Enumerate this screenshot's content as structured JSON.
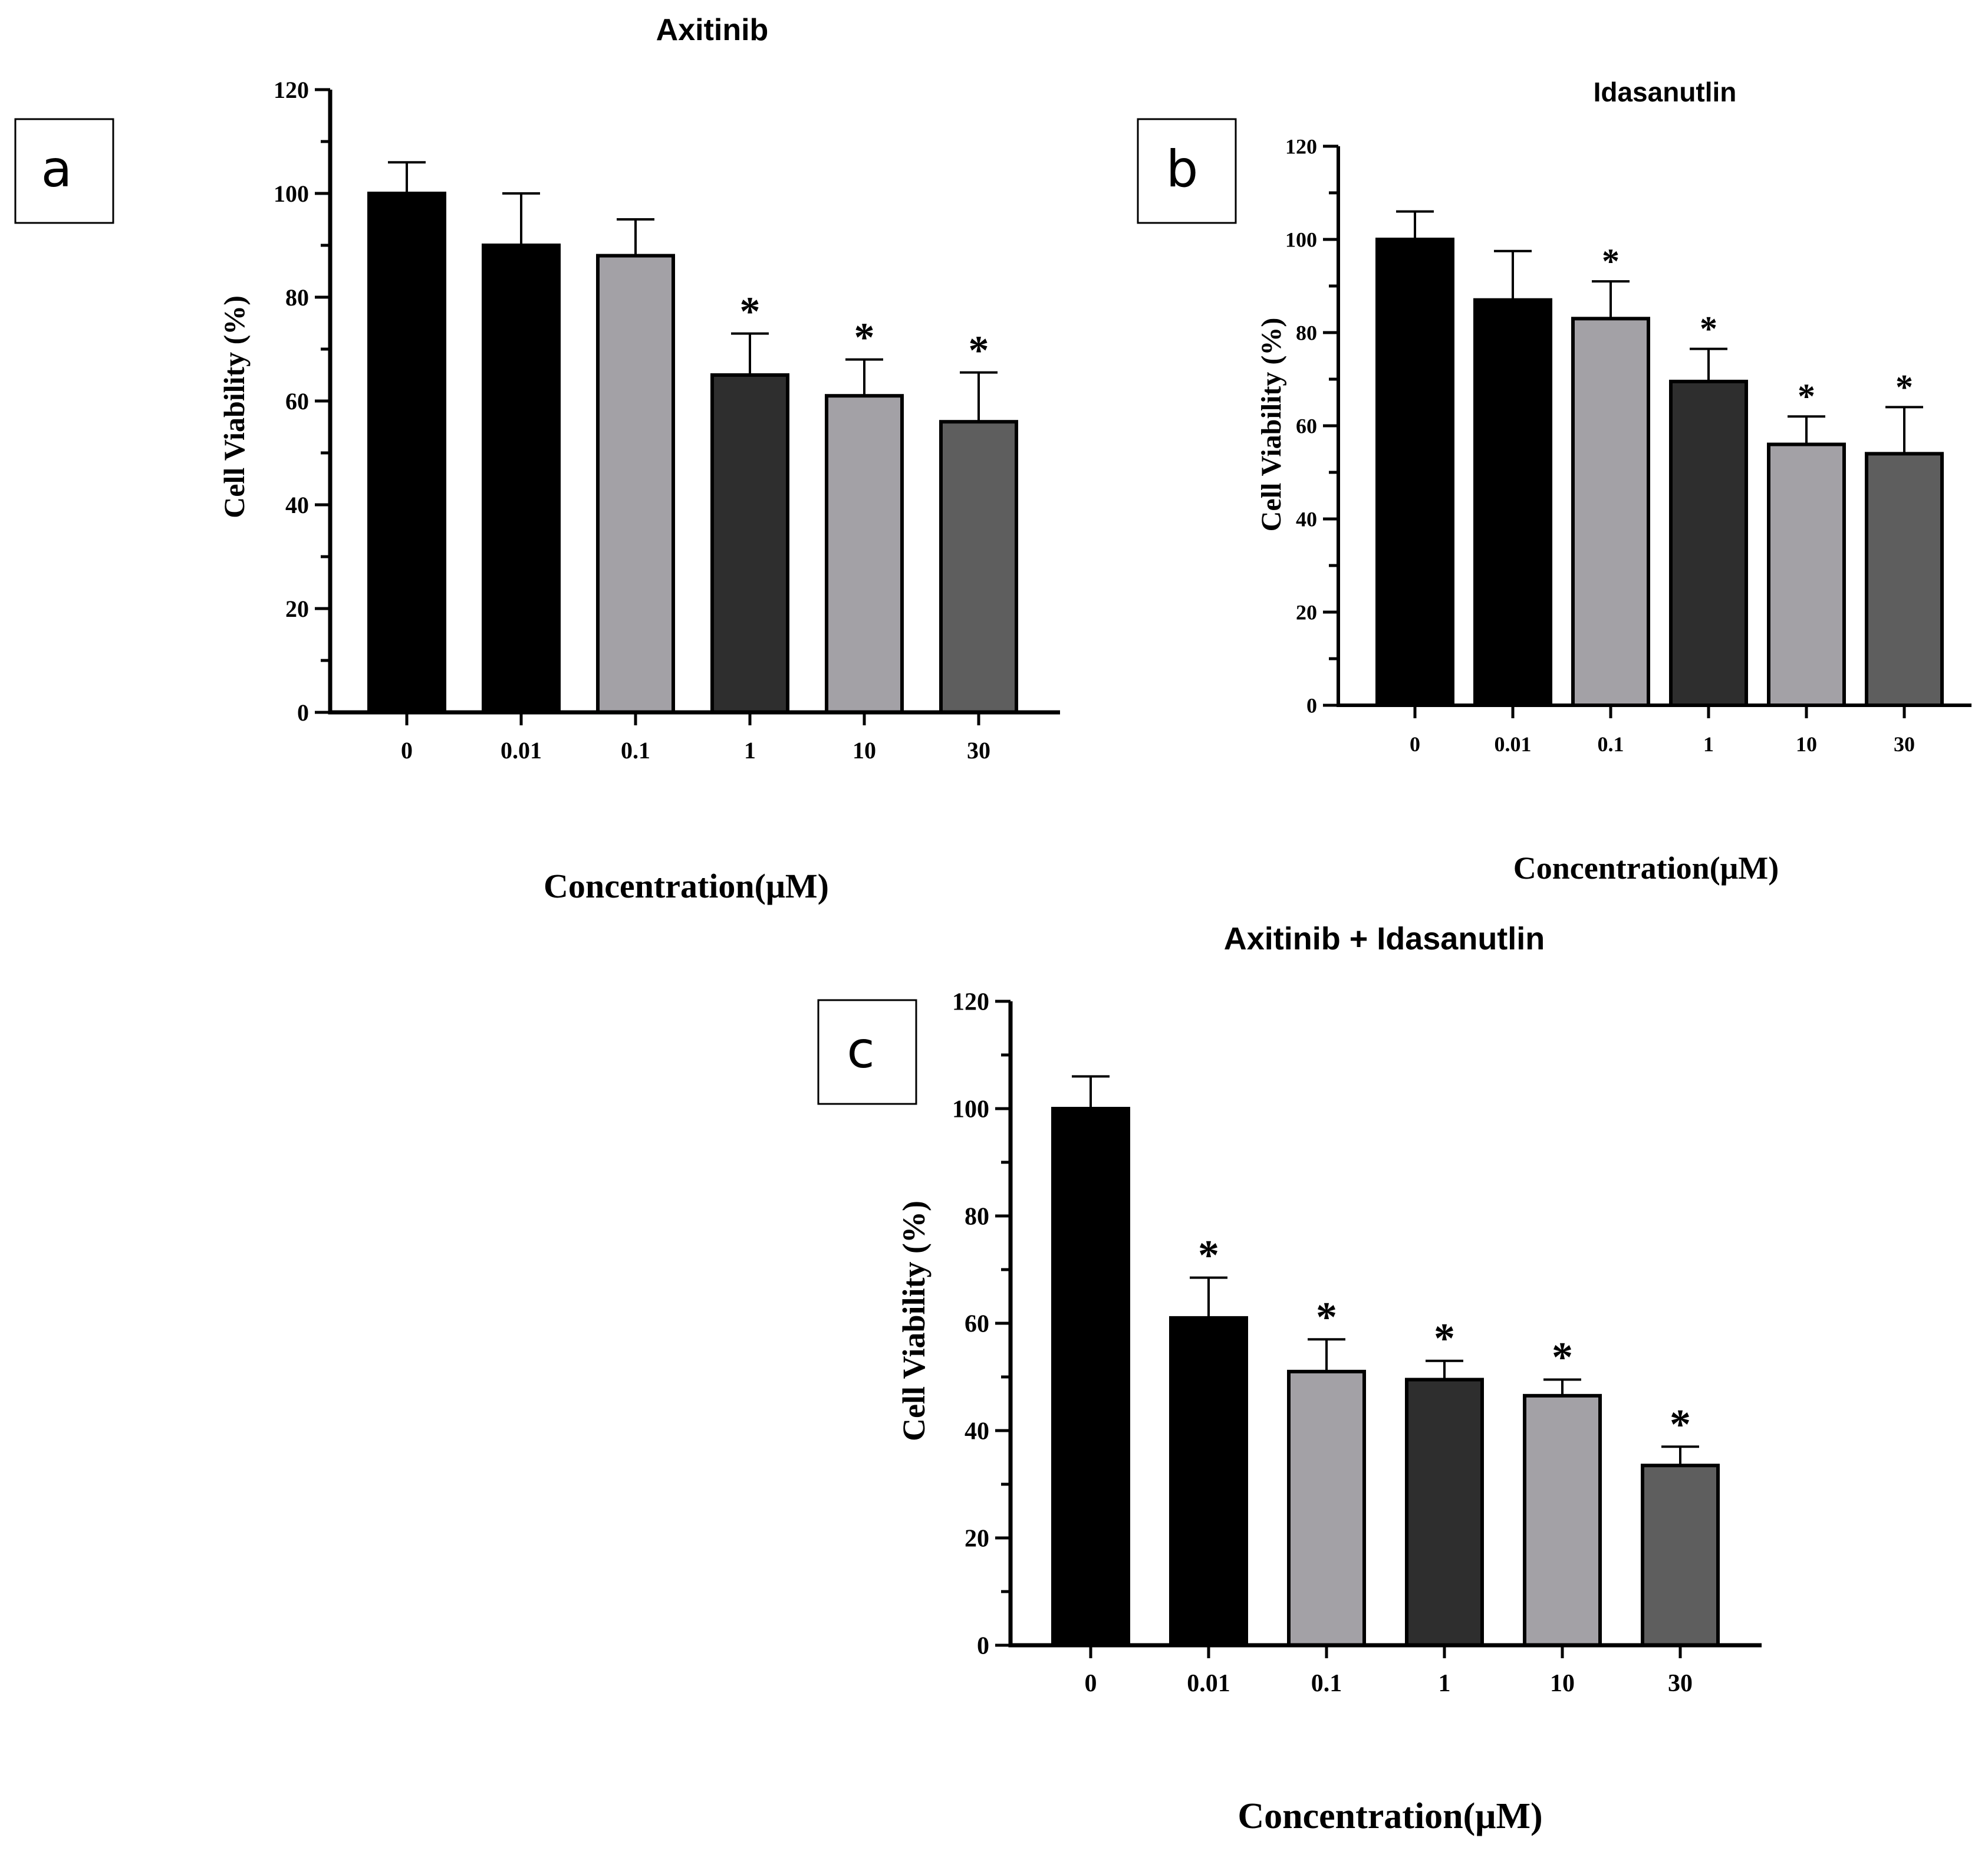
{
  "chart_data": [
    {
      "type": "bar",
      "panel_label": "a",
      "title": "Axitinib",
      "xlabel": "Concentration(μM)",
      "ylabel": "Cell Viability (%)",
      "ylim": [
        0,
        120
      ],
      "yticks": [
        "0",
        "20",
        "40",
        "60",
        "80",
        "100",
        "120"
      ],
      "categories": [
        "0",
        "0.01",
        "0.1",
        "1",
        "10",
        "30"
      ],
      "values": [
        100,
        90,
        88,
        65,
        61,
        56
      ],
      "errors": [
        6,
        10,
        7,
        8,
        7,
        9.5
      ],
      "significance": [
        "",
        "",
        "",
        "*",
        "*",
        "*"
      ],
      "bar_colors": [
        "#000000",
        "#000000",
        "#a3a1a6",
        "#2e2e2e",
        "#a3a1a6",
        "#5e5e5e"
      ],
      "grid": false,
      "legend": "none"
    },
    {
      "type": "bar",
      "panel_label": "b",
      "title": "Idasanutlin",
      "xlabel": "Concentration(μM)",
      "ylabel": "Cell Viability (%)",
      "ylim": [
        0,
        120
      ],
      "yticks": [
        "0",
        "20",
        "40",
        "60",
        "80",
        "100",
        "120"
      ],
      "categories": [
        "0",
        "0.01",
        "0.1",
        "1",
        "10",
        "30"
      ],
      "values": [
        100,
        87,
        83,
        69.5,
        56,
        54
      ],
      "errors": [
        6,
        10.5,
        8,
        7,
        6,
        10
      ],
      "significance": [
        "",
        "",
        "*",
        "*",
        "*",
        "*"
      ],
      "bar_colors": [
        "#000000",
        "#000000",
        "#a3a1a6",
        "#2e2e2e",
        "#a3a1a6",
        "#5e5e5e"
      ],
      "grid": false,
      "legend": "none"
    },
    {
      "type": "bar",
      "panel_label": "c",
      "title": "Axitinib + Idasanutlin",
      "xlabel": "Concentration(μM)",
      "ylabel": "Cell Viability (%)",
      "ylim": [
        0,
        120
      ],
      "yticks": [
        "0",
        "20",
        "40",
        "60",
        "80",
        "100",
        "120"
      ],
      "categories": [
        "0",
        "0.01",
        "0.1",
        "1",
        "10",
        "30"
      ],
      "values": [
        100,
        61,
        51,
        49.5,
        46.5,
        33.5
      ],
      "errors": [
        6,
        7.5,
        6,
        3.5,
        3,
        3.5
      ],
      "significance": [
        "",
        "*",
        "*",
        "*",
        "*",
        "*"
      ],
      "bar_colors": [
        "#000000",
        "#000000",
        "#a3a1a6",
        "#2e2e2e",
        "#a3a1a6",
        "#5e5e5e"
      ],
      "grid": false,
      "legend": "none"
    }
  ]
}
